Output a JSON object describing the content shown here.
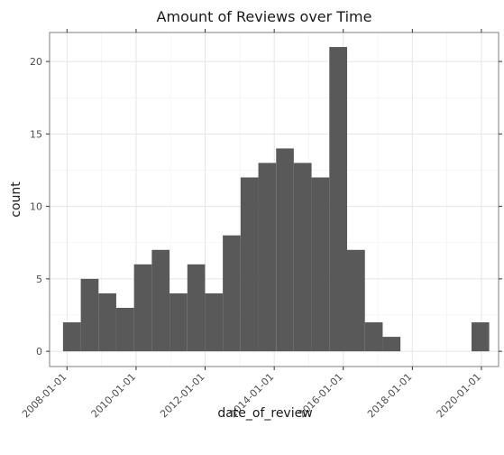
{
  "chart_data": {
    "type": "bar",
    "title": "Amount of Reviews over Time",
    "xlabel": "date_of_review",
    "ylabel": "count",
    "x_ticks": [
      "2008-01-01",
      "2010-01-01",
      "2012-01-01",
      "2014-01-01",
      "2016-01-01",
      "2018-01-01",
      "2020-01-01"
    ],
    "y_ticks": [
      0,
      5,
      10,
      15,
      20
    ],
    "xlim": [
      "2007-07-01",
      "2020-07-01"
    ],
    "ylim": [
      -1.05,
      22
    ],
    "bins": [
      {
        "start": "2007-11-20",
        "end": "2008-05-26",
        "count": 2
      },
      {
        "start": "2008-05-26",
        "end": "2008-11-30",
        "count": 5
      },
      {
        "start": "2008-11-30",
        "end": "2009-06-05",
        "count": 4
      },
      {
        "start": "2009-06-05",
        "end": "2009-12-10",
        "count": 3
      },
      {
        "start": "2009-12-10",
        "end": "2010-06-16",
        "count": 6
      },
      {
        "start": "2010-06-16",
        "end": "2010-12-21",
        "count": 7
      },
      {
        "start": "2010-12-21",
        "end": "2011-06-27",
        "count": 4
      },
      {
        "start": "2011-06-27",
        "end": "2011-12-31",
        "count": 6
      },
      {
        "start": "2011-12-31",
        "end": "2012-07-06",
        "count": 4
      },
      {
        "start": "2012-07-06",
        "end": "2013-01-10",
        "count": 8
      },
      {
        "start": "2013-01-10",
        "end": "2013-07-17",
        "count": 12
      },
      {
        "start": "2013-07-17",
        "end": "2014-01-21",
        "count": 13
      },
      {
        "start": "2014-01-21",
        "end": "2014-07-27",
        "count": 14
      },
      {
        "start": "2014-07-27",
        "end": "2015-01-31",
        "count": 13
      },
      {
        "start": "2015-01-31",
        "end": "2015-08-07",
        "count": 12
      },
      {
        "start": "2015-08-07",
        "end": "2016-02-11",
        "count": 21
      },
      {
        "start": "2016-02-11",
        "end": "2016-08-17",
        "count": 7
      },
      {
        "start": "2016-08-17",
        "end": "2017-02-21",
        "count": 2
      },
      {
        "start": "2017-02-21",
        "end": "2017-08-28",
        "count": 1
      },
      {
        "start": "2017-08-28",
        "end": "2018-03-04",
        "count": 0
      },
      {
        "start": "2018-03-04",
        "end": "2018-09-08",
        "count": 0
      },
      {
        "start": "2018-09-08",
        "end": "2019-03-15",
        "count": 0
      },
      {
        "start": "2019-03-15",
        "end": "2019-09-19",
        "count": 0
      },
      {
        "start": "2019-09-19",
        "end": "2020-03-24",
        "count": 2
      }
    ],
    "bar_color": "#595959",
    "grid": true,
    "theme": "bw"
  }
}
